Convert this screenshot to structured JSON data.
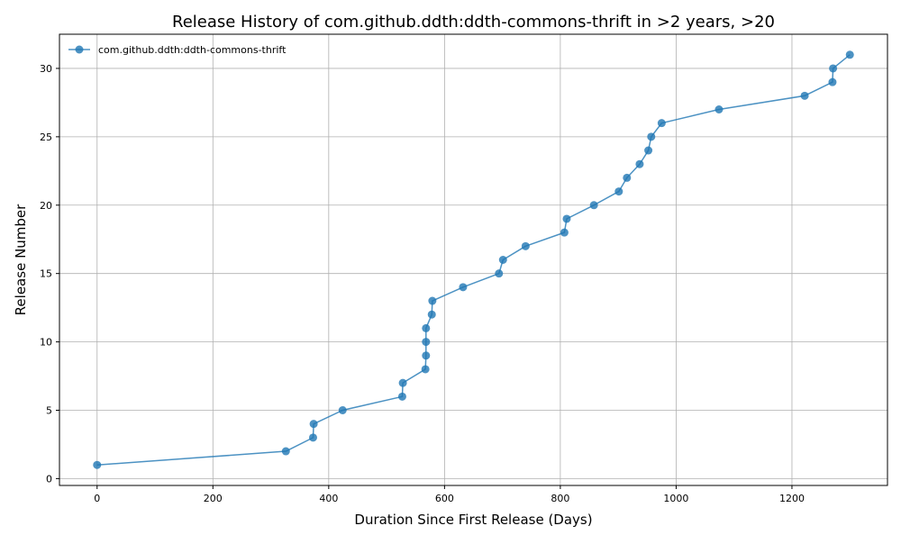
{
  "chart_data": {
    "type": "line",
    "title": "Release History of com.github.ddth:ddth-commons-thrift in >2 years, >20",
    "xlabel": "Duration Since First Release (Days)",
    "ylabel": "Release Number",
    "xlim": [
      -65,
      1365
    ],
    "ylim": [
      -0.5,
      32.5
    ],
    "xticks": [
      0,
      200,
      400,
      600,
      800,
      1000,
      1200
    ],
    "yticks": [
      0,
      5,
      10,
      15,
      20,
      25,
      30
    ],
    "grid": true,
    "legend_position": "top-left",
    "colors": {
      "line": "#1f77b4",
      "grid": "#b0b0b0"
    },
    "series": [
      {
        "name": "com.github.ddth:ddth-commons-thrift",
        "marker": "circle",
        "x": [
          0,
          326,
          373,
          374,
          424,
          527,
          528,
          567,
          568,
          568,
          568,
          578,
          579,
          632,
          694,
          701,
          740,
          807,
          811,
          858,
          901,
          915,
          937,
          952,
          957,
          975,
          1074,
          1222,
          1270,
          1271,
          1300
        ],
        "y": [
          1,
          2,
          3,
          4,
          5,
          6,
          7,
          8,
          9,
          10,
          11,
          12,
          13,
          14,
          15,
          16,
          17,
          18,
          19,
          20,
          21,
          22,
          23,
          24,
          25,
          26,
          27,
          28,
          29,
          30,
          31
        ]
      }
    ]
  }
}
